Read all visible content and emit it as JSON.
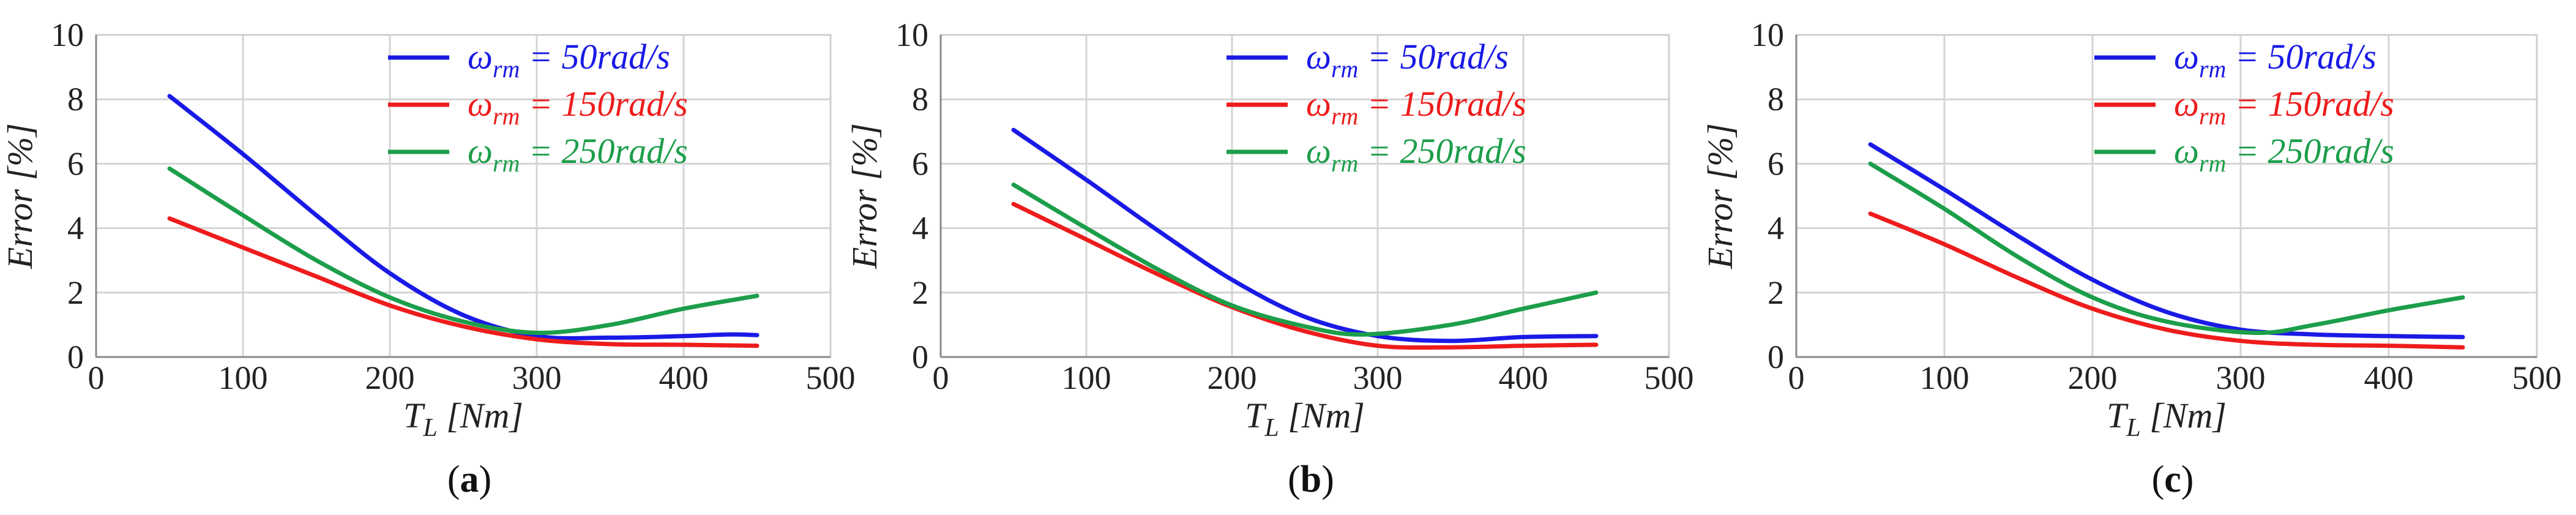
{
  "colors": {
    "blue": "#1a1ae6",
    "red": "#ee1c1c",
    "green": "#1c9e4a"
  },
  "chart_data": [
    {
      "type": "line",
      "panel_label": "a",
      "xlabel": "T_L [Nm]",
      "ylabel": "Error [%]",
      "xlim": [
        0,
        500
      ],
      "ylim": [
        0,
        10
      ],
      "xticks": [
        "0",
        "100",
        "200",
        "300",
        "400",
        "500"
      ],
      "yticks": [
        "0",
        "2",
        "4",
        "6",
        "8",
        "10"
      ],
      "legend_position": "top-right",
      "series": [
        {
          "name": "ωrm = 50rad/s",
          "legend_main": "ω",
          "legend_sub": "rm",
          "legend_rest": " = 50rad/s",
          "color": "#1a1ae6",
          "x": [
            50,
            100,
            150,
            200,
            250,
            300,
            350,
            400,
            430,
            450
          ],
          "y": [
            8.1,
            6.3,
            4.4,
            2.6,
            1.3,
            0.65,
            0.6,
            0.65,
            0.7,
            0.68
          ]
        },
        {
          "name": "ωrm = 150rad/s",
          "legend_main": "ω",
          "legend_sub": "rm",
          "legend_rest": " = 150rad/s",
          "color": "#ee1c1c",
          "x": [
            50,
            100,
            150,
            200,
            250,
            300,
            350,
            400,
            450
          ],
          "y": [
            4.3,
            3.4,
            2.5,
            1.6,
            0.95,
            0.55,
            0.4,
            0.38,
            0.35
          ]
        },
        {
          "name": "ωrm = 250rad/s",
          "legend_main": "ω",
          "legend_sub": "rm",
          "legend_rest": " = 250rad/s",
          "color": "#1c9e4a",
          "x": [
            50,
            100,
            150,
            200,
            250,
            300,
            350,
            400,
            450
          ],
          "y": [
            5.85,
            4.4,
            3.0,
            1.85,
            1.1,
            0.75,
            1.0,
            1.5,
            1.9
          ]
        }
      ]
    },
    {
      "type": "line",
      "panel_label": "b",
      "xlabel": "T_L [Nm]",
      "ylabel": "Error [%]",
      "xlim": [
        0,
        500
      ],
      "ylim": [
        0,
        10
      ],
      "xticks": [
        "0",
        "100",
        "200",
        "300",
        "400",
        "500"
      ],
      "yticks": [
        "0",
        "2",
        "4",
        "6",
        "8",
        "10"
      ],
      "legend_position": "top-right",
      "series": [
        {
          "name": "ωrm = 50rad/s",
          "legend_main": "ω",
          "legend_sub": "rm",
          "legend_rest": " = 50rad/s",
          "color": "#1a1ae6",
          "x": [
            50,
            100,
            150,
            200,
            250,
            300,
            350,
            400,
            450
          ],
          "y": [
            7.05,
            5.5,
            3.9,
            2.4,
            1.25,
            0.65,
            0.5,
            0.62,
            0.65
          ]
        },
        {
          "name": "ωrm = 150rad/s",
          "legend_main": "ω",
          "legend_sub": "rm",
          "legend_rest": " = 150rad/s",
          "color": "#ee1c1c",
          "x": [
            50,
            100,
            150,
            200,
            250,
            300,
            350,
            400,
            450
          ],
          "y": [
            4.75,
            3.65,
            2.55,
            1.55,
            0.8,
            0.35,
            0.3,
            0.35,
            0.38
          ]
        },
        {
          "name": "ωrm = 250rad/s",
          "legend_main": "ω",
          "legend_sub": "rm",
          "legend_rest": " = 250rad/s",
          "color": "#1c9e4a",
          "x": [
            50,
            100,
            150,
            200,
            250,
            290,
            350,
            400,
            450
          ],
          "y": [
            5.35,
            4.0,
            2.7,
            1.6,
            0.95,
            0.7,
            1.0,
            1.5,
            2.0
          ]
        }
      ]
    },
    {
      "type": "line",
      "panel_label": "c",
      "xlabel": "T_L [Nm]",
      "ylabel": "Error [%]",
      "xlim": [
        0,
        500
      ],
      "ylim": [
        0,
        10
      ],
      "xticks": [
        "0",
        "100",
        "200",
        "300",
        "400",
        "500"
      ],
      "yticks": [
        "0",
        "2",
        "4",
        "6",
        "8",
        "10"
      ],
      "legend_position": "top-right",
      "series": [
        {
          "name": "ωrm = 50rad/s",
          "legend_main": "ω",
          "legend_sub": "rm",
          "legend_rest": " = 50rad/s",
          "color": "#1a1ae6",
          "x": [
            50,
            100,
            150,
            200,
            250,
            300,
            350,
            400,
            450
          ],
          "y": [
            6.6,
            5.2,
            3.75,
            2.4,
            1.4,
            0.85,
            0.7,
            0.65,
            0.62
          ]
        },
        {
          "name": "ωrm = 150rad/s",
          "legend_main": "ω",
          "legend_sub": "rm",
          "legend_rest": " = 150rad/s",
          "color": "#ee1c1c",
          "x": [
            50,
            100,
            150,
            200,
            250,
            300,
            350,
            400,
            450
          ],
          "y": [
            4.45,
            3.5,
            2.45,
            1.5,
            0.85,
            0.5,
            0.38,
            0.35,
            0.3
          ]
        },
        {
          "name": "ωrm = 250rad/s",
          "legend_main": "ω",
          "legend_sub": "rm",
          "legend_rest": " = 250rad/s",
          "color": "#1c9e4a",
          "x": [
            50,
            100,
            150,
            200,
            250,
            310,
            350,
            400,
            450
          ],
          "y": [
            6.0,
            4.6,
            3.1,
            1.85,
            1.1,
            0.75,
            1.0,
            1.45,
            1.85
          ]
        }
      ]
    }
  ]
}
